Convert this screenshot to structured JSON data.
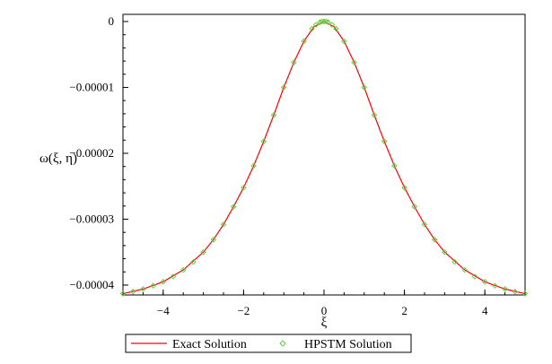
{
  "chart_data": {
    "type": "line",
    "xlabel": "ξ",
    "ylabel": "ω(ξ, η)",
    "xlim": [
      -5,
      5
    ],
    "ylim": [
      -4.15e-05,
      0
    ],
    "x_ticks": [
      {
        "value": -4,
        "label": "−4"
      },
      {
        "value": -2,
        "label": "−2"
      },
      {
        "value": 0,
        "label": "0"
      },
      {
        "value": 2,
        "label": "2"
      },
      {
        "value": 4,
        "label": "4"
      }
    ],
    "y_ticks": [
      {
        "value": 0,
        "label": "0"
      },
      {
        "value": -1e-05,
        "label": "−0.00001"
      },
      {
        "value": -2e-05,
        "label": "−0.00002"
      },
      {
        "value": -3e-05,
        "label": "−0.00003"
      },
      {
        "value": -4e-05,
        "label": "−0.00004"
      }
    ],
    "series": [
      {
        "name": "Exact Solution",
        "style": "line",
        "color": "#ff0000",
        "x": [
          -5,
          -4.5,
          -4,
          -3.5,
          -3,
          -2.75,
          -2.5,
          -2.25,
          -2,
          -1.75,
          -1.5,
          -1.25,
          -1,
          -0.75,
          -0.5,
          -0.25,
          0,
          0.25,
          0.5,
          0.75,
          1,
          1.25,
          1.5,
          1.75,
          2,
          2.25,
          2.5,
          2.75,
          3,
          3.5,
          4,
          4.5,
          5
        ],
        "y": [
          -4.13e-05,
          -4.06e-05,
          -3.95e-05,
          -3.77e-05,
          -3.5e-05,
          -3.31e-05,
          -3.08e-05,
          -2.81e-05,
          -2.52e-05,
          -2.19e-05,
          -1.82e-05,
          -1.42e-05,
          -1e-05,
          -6.2e-06,
          -3e-06,
          -8e-07,
          0,
          -8e-07,
          -3e-06,
          -6.2e-06,
          -1e-05,
          -1.42e-05,
          -1.82e-05,
          -2.19e-05,
          -2.52e-05,
          -2.81e-05,
          -3.08e-05,
          -3.31e-05,
          -3.5e-05,
          -3.77e-05,
          -3.95e-05,
          -4.06e-05,
          -4.13e-05
        ]
      },
      {
        "name": "HPSTM Solution",
        "style": "markers",
        "color": "#66cc44",
        "x": [
          -5,
          -4.75,
          -4.5,
          -4.25,
          -4,
          -3.75,
          -3.5,
          -3.25,
          -3,
          -2.75,
          -2.5,
          -2.25,
          -2,
          -1.75,
          -1.5,
          -1.25,
          -1,
          -0.75,
          -0.5,
          -0.3,
          -0.2,
          -0.1,
          -0.05,
          0,
          0.05,
          0.1,
          0.2,
          0.3,
          0.5,
          0.75,
          1,
          1.25,
          1.5,
          1.75,
          2,
          2.25,
          2.5,
          2.75,
          3,
          3.25,
          3.5,
          3.75,
          4,
          4.25,
          4.5,
          4.75,
          5
        ],
        "y": [
          -4.13e-05,
          -4.1e-05,
          -4.06e-05,
          -4.01e-05,
          -3.95e-05,
          -3.87e-05,
          -3.77e-05,
          -3.65e-05,
          -3.5e-05,
          -3.31e-05,
          -3.08e-05,
          -2.81e-05,
          -2.52e-05,
          -2.19e-05,
          -1.82e-05,
          -1.42e-05,
          -1e-05,
          -6.2e-06,
          -3e-06,
          -1.1e-06,
          -5e-07,
          -1e-07,
          -0.0,
          0,
          -0.0,
          -1e-07,
          -5e-07,
          -1.1e-06,
          -3e-06,
          -6.2e-06,
          -1e-05,
          -1.42e-05,
          -1.82e-05,
          -2.19e-05,
          -2.52e-05,
          -2.81e-05,
          -3.08e-05,
          -3.31e-05,
          -3.5e-05,
          -3.65e-05,
          -3.77e-05,
          -3.87e-05,
          -3.95e-05,
          -4.01e-05,
          -4.06e-05,
          -4.1e-05,
          -4.13e-05
        ]
      }
    ],
    "legend": {
      "placement": "bottom",
      "entries": [
        {
          "label": "Exact Solution",
          "kind": "line",
          "color": "#ff0000"
        },
        {
          "label": "HPSTM Solution",
          "kind": "diamond-marker",
          "color": "#66cc44"
        }
      ]
    }
  }
}
